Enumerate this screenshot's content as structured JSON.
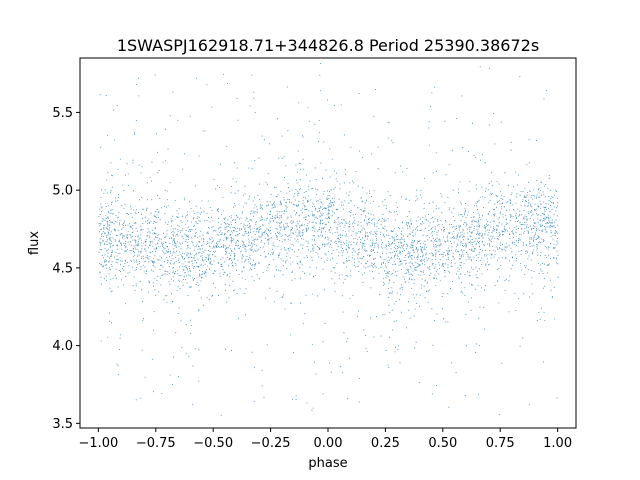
{
  "chart_data": {
    "type": "scatter",
    "title": "1SWASPJ162918.71+344826.8 Period 25390.38672s",
    "xlabel": "phase",
    "ylabel": "flux",
    "xlim": [
      -1.08,
      1.08
    ],
    "ylim": [
      3.47,
      5.85
    ],
    "xticks": [
      -1.0,
      -0.75,
      -0.5,
      -0.25,
      0.0,
      0.25,
      0.5,
      0.75,
      1.0
    ],
    "xtick_labels": [
      "−1.00",
      "−0.75",
      "−0.50",
      "−0.25",
      "0.00",
      "0.25",
      "0.50",
      "0.75",
      "1.00"
    ],
    "yticks": [
      3.5,
      4.0,
      4.5,
      5.0,
      5.5
    ],
    "ytick_labels": [
      "3.5",
      "4.0",
      "4.5",
      "5.0",
      "5.5"
    ],
    "grid": false,
    "series": [
      {
        "color": "#1f77b4",
        "point_count": "dense (tens of thousands)",
        "x_range": [
          -1.0,
          1.0
        ],
        "y_range": [
          3.55,
          5.82
        ],
        "mean_flux_curve": {
          "phase": [
            -1.0,
            -0.75,
            -0.6,
            -0.5,
            -0.25,
            -0.15,
            0.0,
            0.25,
            0.35,
            0.5,
            0.75,
            0.85,
            1.0
          ],
          "flux": [
            4.72,
            4.64,
            4.61,
            4.62,
            4.76,
            4.79,
            4.76,
            4.64,
            4.61,
            4.62,
            4.76,
            4.79,
            4.76
          ]
        },
        "core_scatter_std": 0.14
      }
    ]
  }
}
